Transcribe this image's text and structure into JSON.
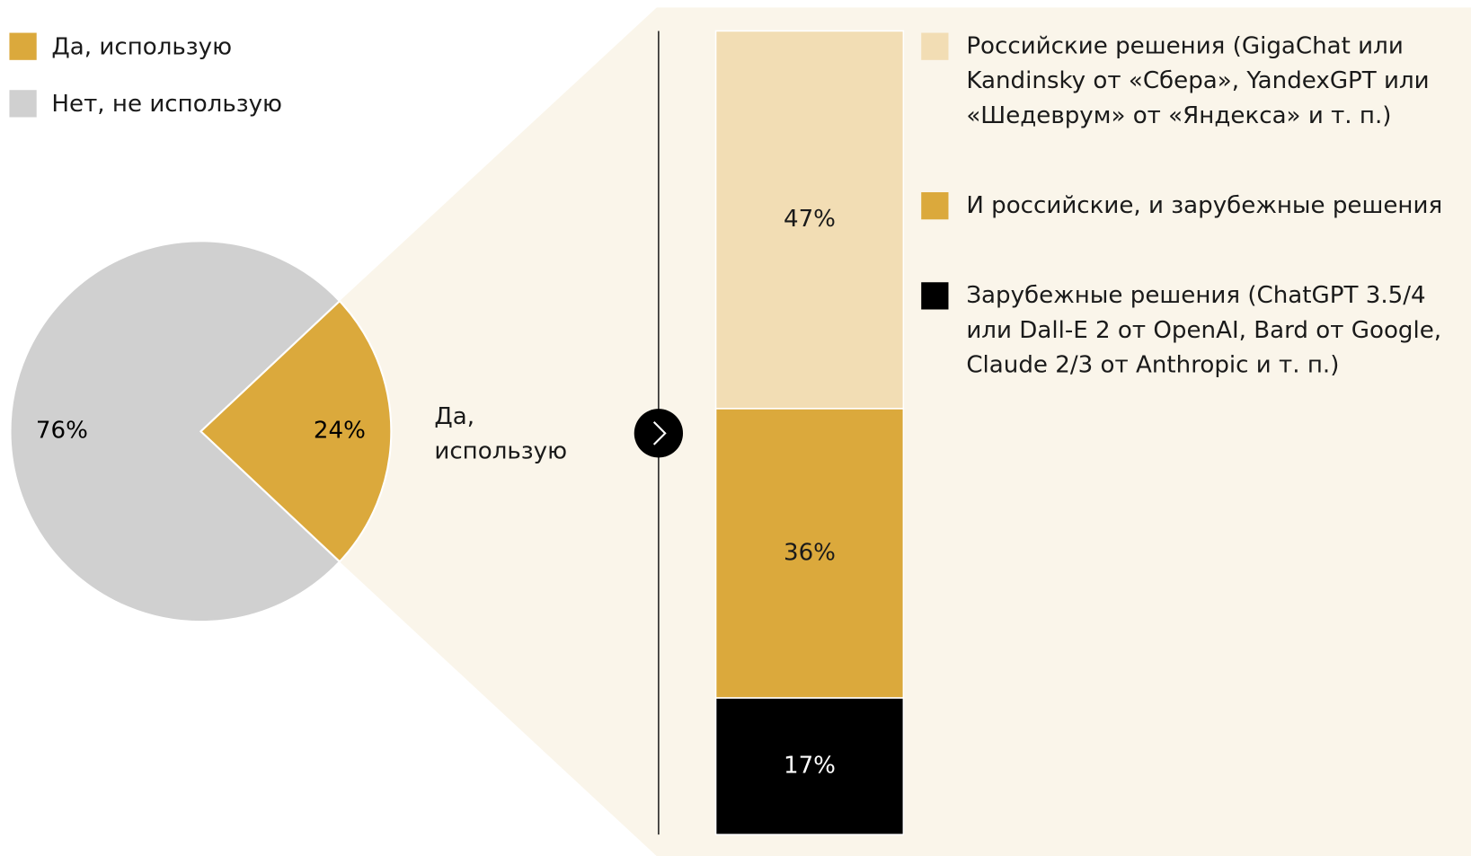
{
  "chart_data": [
    {
      "type": "pie",
      "categories": [
        "Да, использую",
        "Нет, не использую"
      ],
      "values": [
        24,
        76
      ],
      "value_labels": [
        "24%",
        "76%"
      ],
      "colors": [
        "#dba93c",
        "#d0d0d0"
      ],
      "annotation": "Да, использую"
    },
    {
      "type": "stacked-bar",
      "series": [
        {
          "name": "Российские решения (GigaChat или Kandinsky от «Сбера», YandexGPT или «Шедеврум» от «Яндекса» и т. п.)",
          "color": "#f2ddb4",
          "values": [
            47
          ],
          "value_labels": [
            "47%"
          ]
        },
        {
          "name": "И российские, и зарубежные решения",
          "color": "#dba93c",
          "values": [
            36
          ],
          "value_labels": [
            "36%"
          ]
        },
        {
          "name": "Зарубежные решения (ChatGPT 3.5/4 или Dall-E 2 от OpenAI, Bard от Google, Claude 2/3 от Anthropic и т. п.)",
          "color": "#000000",
          "values": [
            17
          ],
          "value_labels": [
            "17%"
          ]
        }
      ]
    }
  ]
}
